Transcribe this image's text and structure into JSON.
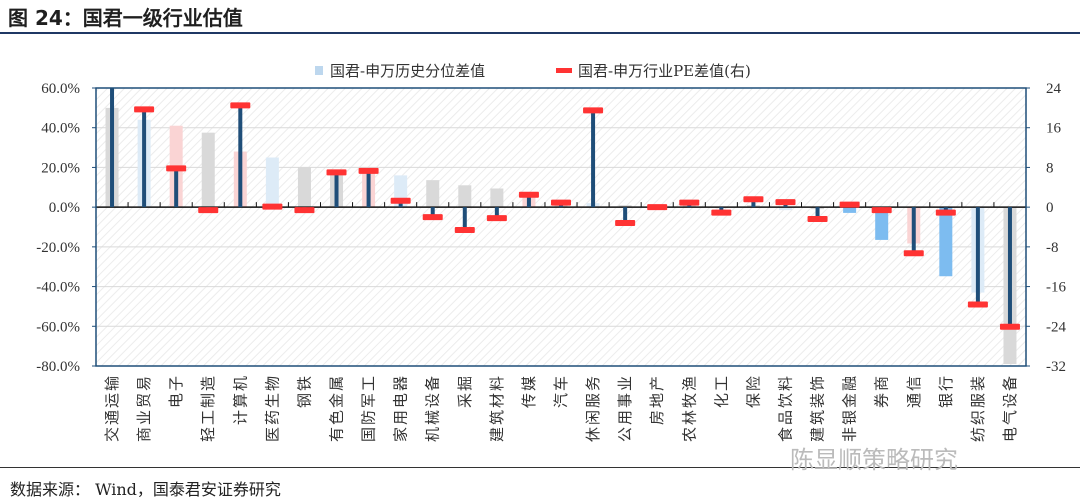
{
  "title": "图 24：国君一级行业估值",
  "source": "数据来源：  Wind，国泰君安证券研究",
  "watermark": "陈显顺策略研究",
  "chart_data": {
    "type": "bar",
    "title": "国君一级行业估值",
    "categories": [
      "交通运输",
      "商业贸易",
      "电子",
      "轻工制造",
      "计算机",
      "医药生物",
      "钢铁",
      "有色金属",
      "国防军工",
      "家用电器",
      "机械设备",
      "采掘",
      "建筑材料",
      "传媒",
      "汽车",
      "休闲服务",
      "公用事业",
      "房地产",
      "农林牧渔",
      "化工",
      "保险",
      "食品饮料",
      "建筑装饰",
      "非银金融",
      "券商",
      "通信",
      "银行",
      "纺织服装",
      "电气设备"
    ],
    "series": [
      {
        "name": "国君-申万历史分位差值",
        "axis": "left",
        "type": "bar",
        "values": [
          0.5,
          0.44,
          0.41,
          0.375,
          0.28,
          0.25,
          0.2,
          0.17,
          0.175,
          0.16,
          0.136,
          0.11,
          0.094,
          0.05,
          0.02,
          0.02,
          0.01,
          0.003,
          0.01,
          -0.005,
          0.01,
          -0.015,
          -0.01,
          -0.029,
          -0.165,
          -0.183,
          -0.348,
          -0.43,
          -0.79
        ],
        "colors": [
          "#d9d9d9",
          "#ddebf7",
          "#fad4d4",
          "#d9d9d9",
          "#fad4d4",
          "#ddebf7",
          "#d9d9d9",
          "#d9d9d9",
          "#fad4d4",
          "#ddebf7",
          "#d9d9d9",
          "#d9d9d9",
          "#d9d9d9",
          "#fad4d4",
          "#d9d9d9",
          "#ddebf7",
          "#d9d9d9",
          "#fad4d4",
          "#d9d9d9",
          "#d9d9d9",
          "#d9d9d9",
          "#ddebf7",
          "#d9d9d9",
          "#7dbcf0",
          "#7dbcf0",
          "#fad4d4",
          "#7dbcf0",
          "#ddebf7",
          "#d9d9d9"
        ]
      },
      {
        "name": "国君-申万行业PE差值(右)",
        "axis": "right",
        "type": "stem",
        "values": [
          26,
          19.7,
          7.8,
          -0.6,
          20.5,
          0.1,
          -0.6,
          7.0,
          7.3,
          1.3,
          -2.0,
          -4.6,
          -2.2,
          2.5,
          0.9,
          19.5,
          -3.2,
          0,
          0.9,
          -1.1,
          1.6,
          1.0,
          -2.4,
          0.5,
          -0.6,
          -9.3,
          -1.1,
          -19.6,
          -24.1
        ],
        "stem_color": "#1f4e79",
        "cap_color": "#ff3333"
      }
    ],
    "left_axis": {
      "ylim": [
        -0.8,
        0.6
      ],
      "ticks": [
        "60.0%",
        "40.0%",
        "20.0%",
        "0.0%",
        "-20.0%",
        "-40.0%",
        "-60.0%",
        "-80.0%"
      ]
    },
    "right_axis": {
      "ylim": [
        -32,
        24
      ],
      "ticks": [
        "24",
        "16",
        "8",
        "0",
        "-8",
        "-16",
        "-24",
        "-32"
      ]
    },
    "legend": {
      "placement": "top",
      "items": [
        "国君-申万历史分位差值",
        "国君-申万行业PE差值(右)"
      ]
    },
    "grid": true
  }
}
